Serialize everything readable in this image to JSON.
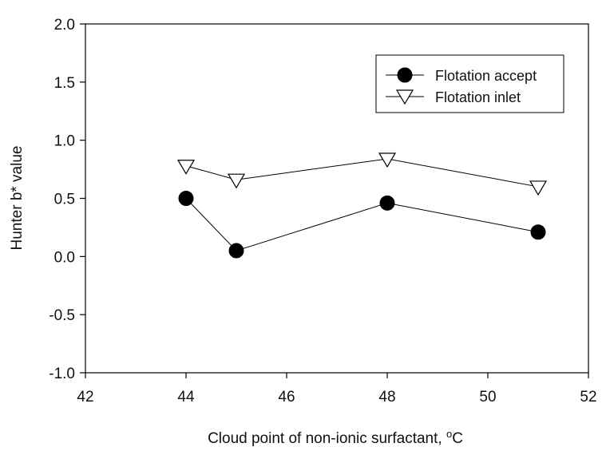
{
  "chart_data": {
    "type": "line",
    "xlabel": "Cloud point of non-ionic surfactant, ",
    "xlabel_superscript": "o",
    "xlabel_unit": "C",
    "ylabel": "Hunter b* value",
    "xlim": [
      42,
      52
    ],
    "ylim": [
      -1.0,
      2.0
    ],
    "x_ticks": [
      "42",
      "44",
      "46",
      "48",
      "50",
      "52"
    ],
    "y_ticks": [
      "-1.0",
      "-0.5",
      "0.0",
      "0.5",
      "1.0",
      "1.5",
      "2.0"
    ],
    "x": [
      44,
      45,
      48,
      51
    ],
    "grid": false,
    "legend_position": "top-right",
    "series": [
      {
        "name": "Flotation accept",
        "marker": "filled-circle",
        "values": [
          0.5,
          0.05,
          0.46,
          0.21
        ]
      },
      {
        "name": "Flotation inlet",
        "marker": "open-triangle-down",
        "values": [
          0.78,
          0.66,
          0.84,
          0.6
        ]
      }
    ],
    "colors": {
      "line": "#000000",
      "filled_marker": "#000000",
      "open_marker_fill": "#ffffff"
    }
  }
}
